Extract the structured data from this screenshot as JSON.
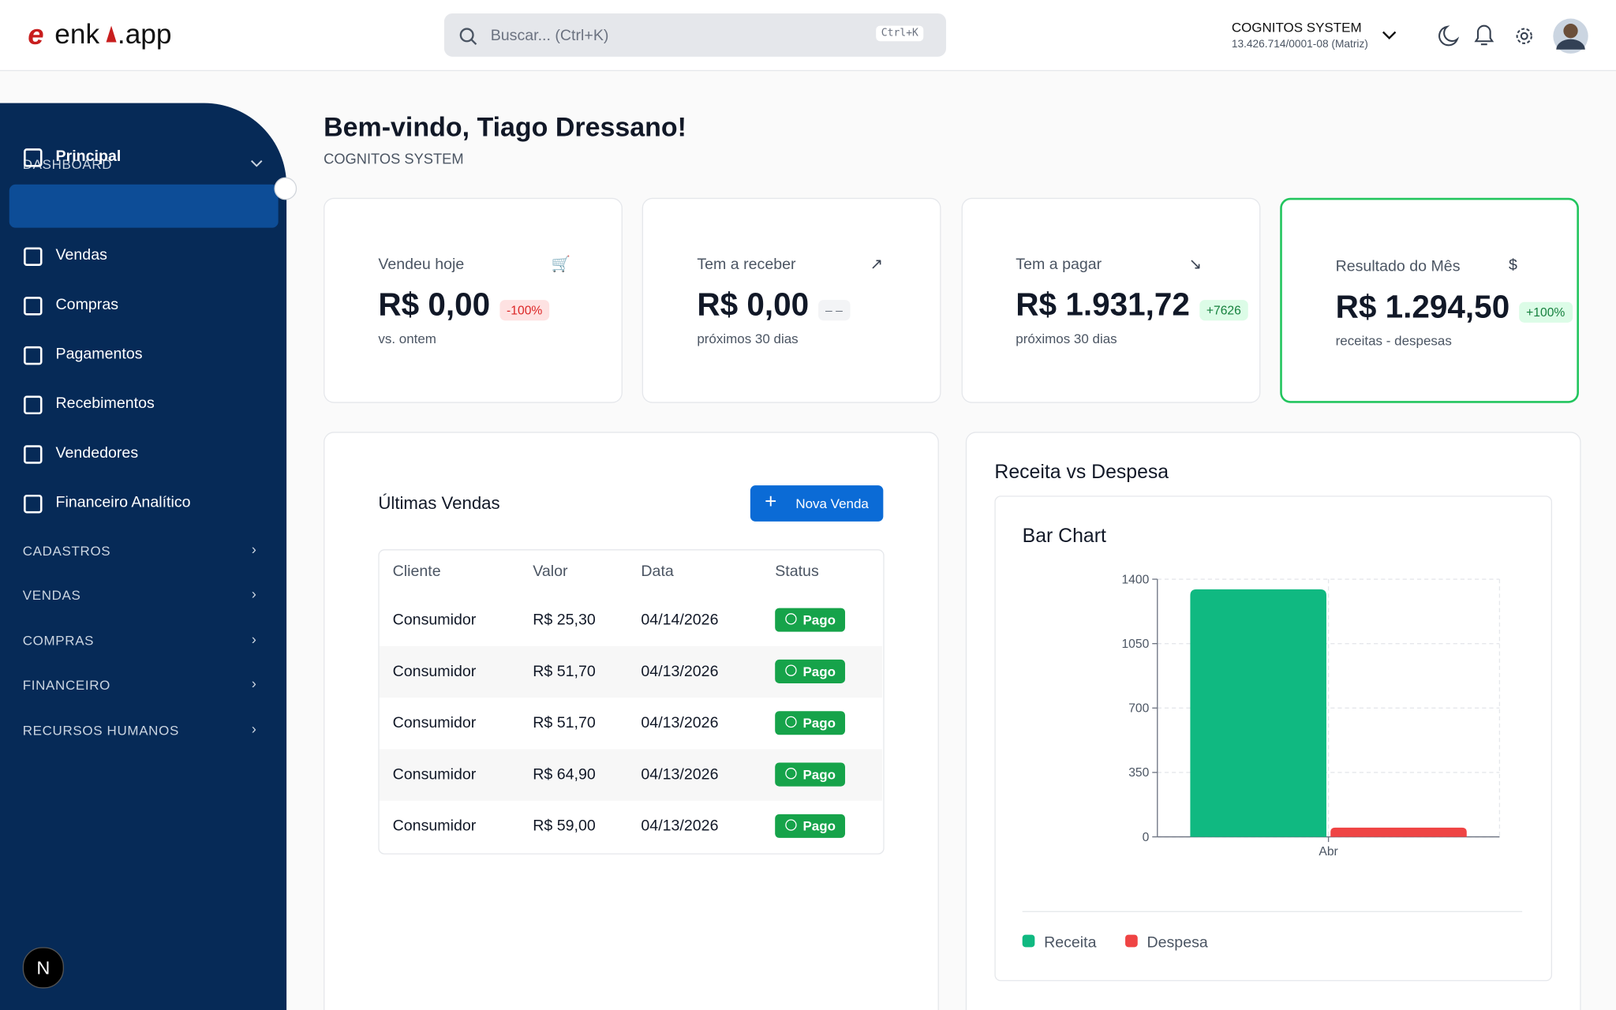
{
  "header": {
    "logo_left": "enk",
    "logo_right": ".app",
    "search_placeholder": "Buscar... (Ctrl+K)",
    "shortcut": "Ctrl+K",
    "company": "COGNITOS SYSTEM",
    "company_id": "13.426.714/0001-08 (Matriz)"
  },
  "sidebar": {
    "dashboard": "DASHBOARD",
    "items": [
      "Principal",
      "Vendas",
      "Compras",
      "Pagamentos",
      "Recebimentos",
      "Vendedores",
      "Financeiro Analítico"
    ],
    "groups": [
      "CADASTROS",
      "VENDAS",
      "COMPRAS",
      "FINANCEIRO",
      "RECURSOS HUMANOS"
    ]
  },
  "welcome": {
    "title": "Bem-vindo, Tiago Dressano!",
    "subtitle": "COGNITOS SYSTEM"
  },
  "cards": [
    {
      "label": "Vendeu hoje",
      "value": "R$ 0,00",
      "badge": "-100%",
      "note": "vs. ontem"
    },
    {
      "label": "Tem a receber",
      "value": "R$ 0,00",
      "badge": "– –",
      "note": "próximos 30 dias"
    },
    {
      "label": "Tem a pagar",
      "value": "R$ 1.931,72",
      "badge": "+7626",
      "note": "próximos 30 dias"
    },
    {
      "label": "Resultado do Mês",
      "value": "R$ 1.294,50",
      "badge": "+100%",
      "note": "receitas - despesas"
    }
  ],
  "sales": {
    "title": "Últimas Vendas",
    "button": "Nova Venda",
    "columns": [
      "Cliente",
      "Valor",
      "Data",
      "Status"
    ],
    "rows": [
      [
        "Consumidor",
        "R$ 25,30",
        "04/14/2026",
        "Pago"
      ],
      [
        "Consumidor",
        "R$ 51,70",
        "04/13/2026",
        "Pago"
      ],
      [
        "Consumidor",
        "R$ 51,70",
        "04/13/2026",
        "Pago"
      ],
      [
        "Consumidor",
        "R$ 64,90",
        "04/13/2026",
        "Pago"
      ],
      [
        "Consumidor",
        "R$ 59,00",
        "04/13/2026",
        "Pago"
      ]
    ]
  },
  "revenue": {
    "title": "Receita vs Despesa",
    "chart": {
      "type": "bar",
      "title": "Bar Chart",
      "categories": [
        "Abr"
      ],
      "series": [
        {
          "name": "Receita",
          "color": "#10b981",
          "values": [
            1345
          ]
        },
        {
          "name": "Despesa",
          "color": "#ef4444",
          "values": [
            50
          ]
        }
      ],
      "ylim": [
        0,
        1400
      ],
      "yticks": [
        0,
        350,
        700,
        1050,
        1400
      ],
      "grid": true
    }
  }
}
